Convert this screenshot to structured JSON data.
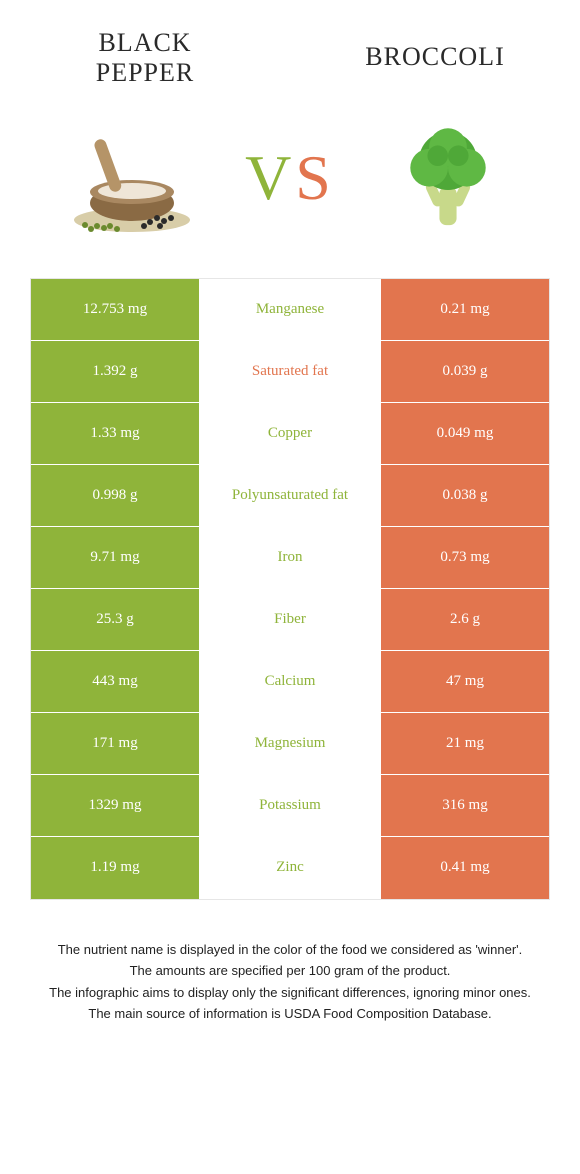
{
  "colors": {
    "left_bg": "#8fb43a",
    "right_bg": "#e2754e",
    "left_text_mid": "#8fb43a",
    "right_text_mid": "#e2754e"
  },
  "header": {
    "left_title_line1": "Black",
    "left_title_line2": "pepper",
    "right_title": "Broccoli",
    "vs_v": "V",
    "vs_s": "S"
  },
  "rows": [
    {
      "left": "12.753 mg",
      "mid": "Manganese",
      "right": "0.21 mg",
      "winner": "left"
    },
    {
      "left": "1.392 g",
      "mid": "Saturated fat",
      "right": "0.039 g",
      "winner": "right"
    },
    {
      "left": "1.33 mg",
      "mid": "Copper",
      "right": "0.049 mg",
      "winner": "left"
    },
    {
      "left": "0.998 g",
      "mid": "Polyunsaturated fat",
      "right": "0.038 g",
      "winner": "left"
    },
    {
      "left": "9.71 mg",
      "mid": "Iron",
      "right": "0.73 mg",
      "winner": "left"
    },
    {
      "left": "25.3 g",
      "mid": "Fiber",
      "right": "2.6 g",
      "winner": "left"
    },
    {
      "left": "443 mg",
      "mid": "Calcium",
      "right": "47 mg",
      "winner": "left"
    },
    {
      "left": "171 mg",
      "mid": "Magnesium",
      "right": "21 mg",
      "winner": "left"
    },
    {
      "left": "1329 mg",
      "mid": "Potassium",
      "right": "316 mg",
      "winner": "left"
    },
    {
      "left": "1.19 mg",
      "mid": "Zinc",
      "right": "0.41 mg",
      "winner": "left"
    }
  ],
  "footnotes": {
    "l1": "The nutrient name is displayed in the color of the food we considered as 'winner'.",
    "l2": "The amounts are specified per 100 gram of the product.",
    "l3": "The infographic aims to display only the significant differences, ignoring minor ones.",
    "l4": "The main source of information is USDA Food Composition Database."
  }
}
